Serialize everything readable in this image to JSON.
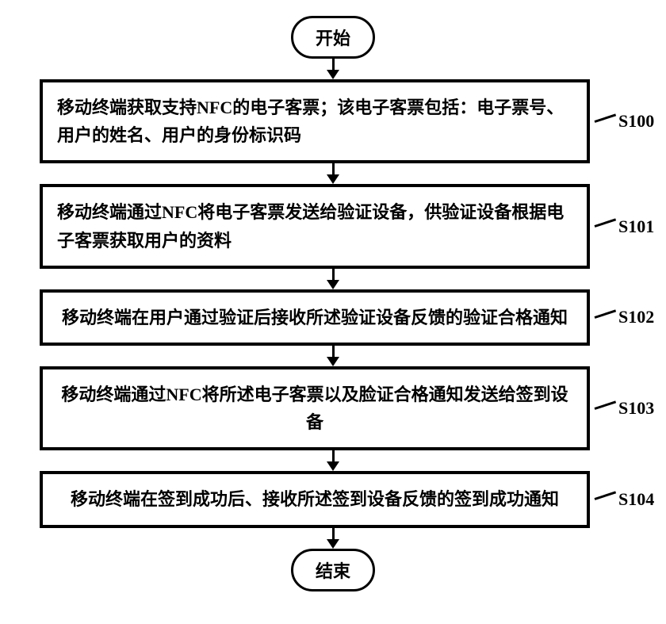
{
  "flowchart": {
    "type": "flowchart",
    "background_color": "#ffffff",
    "border_color": "#000000",
    "border_width": 4,
    "terminator_border_radius": 28,
    "font_family": "SimSun",
    "title_fontsize": 22,
    "step_fontsize": 22,
    "label_fontsize": 22,
    "arrow_color": "#000000",
    "start_label": "开始",
    "end_label": "结束",
    "steps": [
      {
        "id": "S100",
        "text": "移动终端获取支持NFC的电子客票；该电子客票包括：电子票号、用户的姓名、用户的身份标识码",
        "align": "left"
      },
      {
        "id": "S101",
        "text": "移动终端通过NFC将电子客票发送给验证设备，供验证设备根据电子客票获取用户的资料",
        "align": "left"
      },
      {
        "id": "S102",
        "text": "移动终端在用户通过验证后接收所述验证设备反馈的验证合格通知",
        "align": "center"
      },
      {
        "id": "S103",
        "text": "移动终端通过NFC将所述电子客票以及脸证合格通知发送给签到设备",
        "align": "center"
      },
      {
        "id": "S104",
        "text": "移动终端在签到成功后、接收所述签到设备反馈的签到成功通知",
        "align": "center"
      }
    ]
  }
}
